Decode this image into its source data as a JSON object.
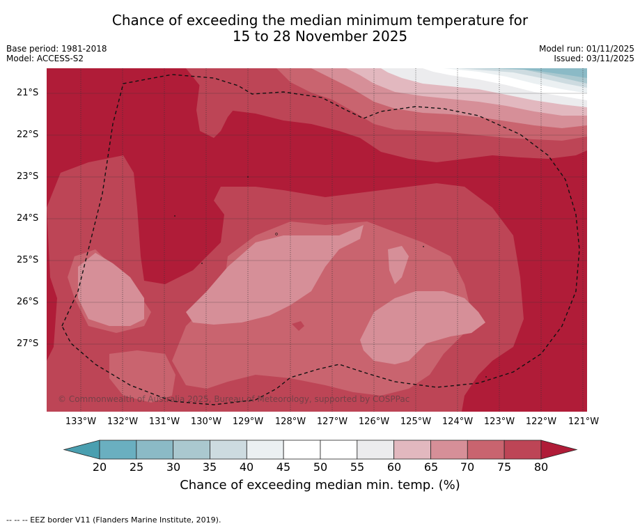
{
  "title_line1": "Chance of exceeding the median minimum temperature for",
  "title_line2": "15 to 28 November 2025",
  "base_period": "Base period: 1981-2018",
  "model": "Model: ACCESS-S2",
  "model_run": "Model run: 01/11/2025",
  "issued": "Issued: 03/11/2025",
  "copyright": "© Commonwealth of Australia 2025, Bureau of Meteorology, supported by COSPPac",
  "lat_labels": [
    "21°S",
    "22°S",
    "23°S",
    "24°S",
    "25°S",
    "26°S",
    "27°S"
  ],
  "lon_labels": [
    "133°W",
    "132°W",
    "131°W",
    "130°W",
    "129°W",
    "128°W",
    "127°W",
    "126°W",
    "125°W",
    "124°W",
    "123°W",
    "122°W",
    "121°W"
  ],
  "colorbar": {
    "ticks": [
      "20",
      "25",
      "30",
      "35",
      "40",
      "45",
      "50",
      "55",
      "60",
      "65",
      "70",
      "75",
      "80"
    ],
    "colors": {
      "below20": "#4a9fb0",
      "c20_25": "#6aafc0",
      "c25_30": "#8bbac6",
      "c30_35": "#aac8cf",
      "c35_40": "#cddbe0",
      "c40_45": "#ebf0f2",
      "c45_50": "#ffffff",
      "c50_55": "#ffffff",
      "c55_60": "#ececee",
      "c60_65": "#e2b8bf",
      "c65_70": "#d68f98",
      "c70_75": "#c9646f",
      "c75_80": "#bd4556",
      "above80": "#b01c38"
    },
    "label": "Chance of exceeding median min. temp. (%)"
  },
  "footnote": "--  --  -- EEZ border V11 (Flanders Marine Institute, 2019)."
}
